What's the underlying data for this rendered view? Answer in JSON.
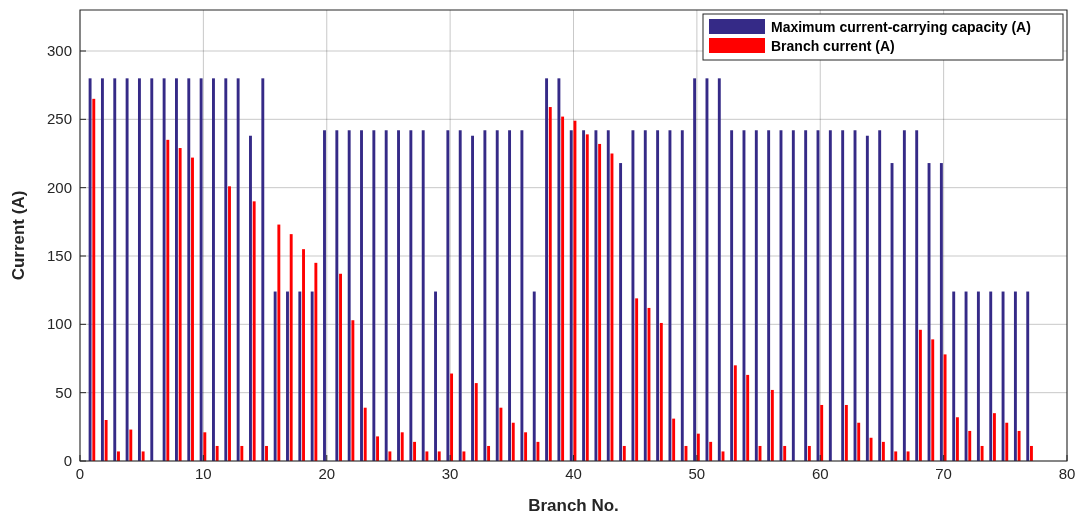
{
  "chart_data": {
    "type": "bar",
    "xlabel": "Branch No.",
    "ylabel": "Current (A)",
    "x": [
      1,
      2,
      3,
      4,
      5,
      6,
      7,
      8,
      9,
      10,
      11,
      12,
      13,
      14,
      15,
      16,
      17,
      18,
      19,
      20,
      21,
      22,
      23,
      24,
      25,
      26,
      27,
      28,
      29,
      30,
      31,
      32,
      33,
      34,
      35,
      36,
      37,
      38,
      39,
      40,
      41,
      42,
      43,
      44,
      45,
      46,
      47,
      48,
      49,
      50,
      51,
      52,
      53,
      54,
      55,
      56,
      57,
      58,
      59,
      60,
      61,
      62,
      63,
      64,
      65,
      66,
      67,
      68,
      69,
      70,
      71,
      72,
      73,
      74,
      75,
      76,
      77
    ],
    "series": [
      {
        "name": "Maximum current-carrying capacity (A)",
        "color": "#352a87",
        "values": [
          280,
          280,
          280,
          280,
          280,
          280,
          280,
          280,
          280,
          280,
          280,
          280,
          280,
          238,
          280,
          124,
          124,
          124,
          124,
          242,
          242,
          242,
          242,
          242,
          242,
          242,
          242,
          242,
          124,
          242,
          242,
          238,
          242,
          242,
          242,
          242,
          124,
          280,
          280,
          242,
          242,
          242,
          242,
          218,
          242,
          242,
          242,
          242,
          242,
          280,
          280,
          280,
          242,
          242,
          242,
          242,
          242,
          242,
          242,
          242,
          242,
          242,
          242,
          238,
          242,
          218,
          242,
          242,
          218,
          218,
          124,
          124,
          124,
          124,
          124,
          124,
          124
        ]
      },
      {
        "name": "Branch current (A)",
        "color": "#ff0000",
        "values": [
          265,
          30,
          7,
          23,
          7,
          0,
          235,
          229,
          222,
          21,
          11,
          201,
          11,
          190,
          11,
          173,
          166,
          155,
          145,
          0,
          137,
          103,
          39,
          18,
          7,
          21,
          14,
          7,
          7,
          64,
          7,
          57,
          11,
          39,
          28,
          21,
          14,
          259,
          252,
          249,
          239,
          232,
          225,
          11,
          119,
          112,
          101,
          31,
          11,
          20,
          14,
          7,
          70,
          63,
          11,
          52,
          11,
          0,
          11,
          41,
          0,
          41,
          28,
          17,
          14,
          7,
          7,
          96,
          89,
          78,
          32,
          22,
          11,
          35,
          28,
          22,
          11
        ]
      }
    ],
    "xlim": [
      0,
      80
    ],
    "xticks": [
      0,
      10,
      20,
      30,
      40,
      50,
      60,
      70,
      80
    ],
    "ylim": [
      0,
      330
    ],
    "yticks": [
      0,
      50,
      100,
      150,
      200,
      250,
      300
    ],
    "grid": true,
    "legend": "top right"
  }
}
